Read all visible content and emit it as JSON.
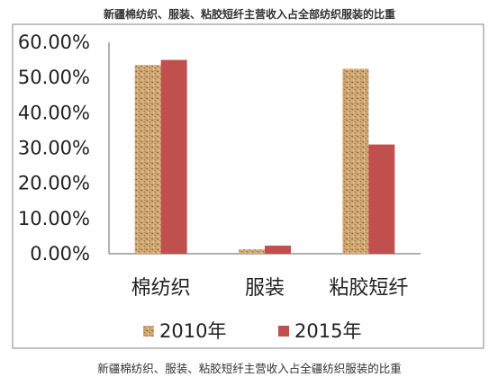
{
  "caption": "新疆棉纺织、服装、粘胶短纤主营收入占全疆纺织服装的比重",
  "chart_data": {
    "type": "bar",
    "title": "新疆棉纺织、服装、粘胶短纤主营收入占全部纺织服装的比重",
    "categories": [
      "棉纺织",
      "服装",
      "粘胶短纤"
    ],
    "series": [
      {
        "name": "2010年",
        "values": [
          53.5,
          1.2,
          52.5
        ],
        "color": "#c9a06a",
        "pattern": "cork-texture"
      },
      {
        "name": "2015年",
        "values": [
          55.0,
          2.3,
          31.0
        ],
        "color": "#c0504d"
      }
    ],
    "ylim": [
      0,
      60
    ],
    "yticks": [
      "0.00%",
      "10.00%",
      "20.00%",
      "30.00%",
      "40.00%",
      "50.00%",
      "60.00%"
    ],
    "grid": false,
    "legend": "bottom"
  }
}
